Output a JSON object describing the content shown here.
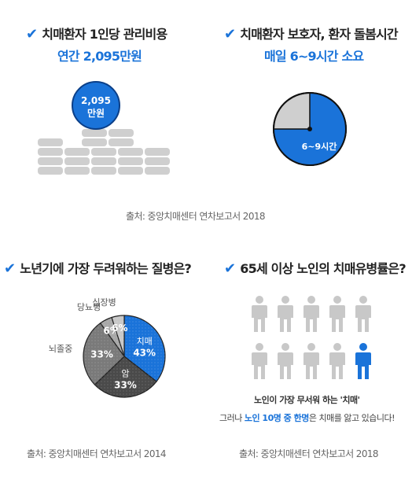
{
  "panel1": {
    "title": "치매환자 1인당 관리비용",
    "subtitle": "연간 2,095만원",
    "badge_line1": "2,095",
    "badge_line2": "만원",
    "source": "출처: 중앙치매센터 연차보고서 2018"
  },
  "panel2": {
    "title": "치매환자 보호자, 환자 돌봄시간",
    "subtitle": "매일 6~9시간 소요",
    "clock_label": "6~9시간",
    "highlight_fraction": 0.75
  },
  "panel3": {
    "title": "노년기에 가장 두려워하는 질병은?",
    "source": "출처: 중앙치매센터 연차보고서 2014",
    "chart_data": {
      "type": "pie",
      "slices": [
        {
          "name": "치매",
          "value": 43,
          "label": "43%",
          "color": "#1a73d9"
        },
        {
          "name": "암",
          "value": 33,
          "label": "33%",
          "color": "#4a4a4a"
        },
        {
          "name": "뇌졸중",
          "value": 33,
          "label": "33%",
          "color": "#7a7a7a"
        },
        {
          "name": "당뇨병",
          "value": 6,
          "label": "6%",
          "color": "#a8a8a8"
        },
        {
          "name": "심장병",
          "value": 6,
          "label": "6%",
          "color": "#c8c8c8"
        }
      ]
    }
  },
  "panel4": {
    "title": "65세 이상 노인의 치매유병률은?",
    "caption_line1": "노인이 가장 무서워 하는 '치매'",
    "caption_pre": "그러나 ",
    "caption_highlight": "노인 10명 중 한명",
    "caption_post": "은 치매를 앓고 있습니다!",
    "source": "출처: 중앙치매센터 연차보고서 2018",
    "people_total": 10,
    "people_highlighted": 1
  },
  "colors": {
    "accent": "#1a73d9",
    "gray": "#c8c8c8",
    "dark": "#4a4a4a"
  },
  "icons": {
    "check": "✔"
  }
}
